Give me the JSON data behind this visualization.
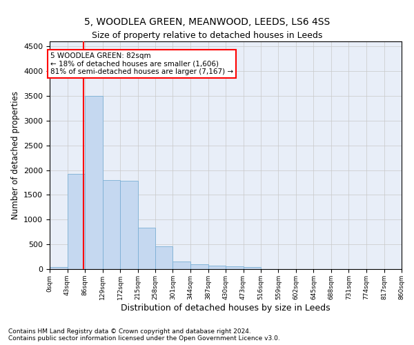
{
  "title": "5, WOODLEA GREEN, MEANWOOD, LEEDS, LS6 4SS",
  "subtitle": "Size of property relative to detached houses in Leeds",
  "xlabel": "Distribution of detached houses by size in Leeds",
  "ylabel": "Number of detached properties",
  "bar_color": "#c5d8f0",
  "bar_edge_color": "#7bafd4",
  "redline_x": 82,
  "annotation_title": "5 WOODLEA GREEN: 82sqm",
  "annotation_line1": "← 18% of detached houses are smaller (1,606)",
  "annotation_line2": "81% of semi-detached houses are larger (7,167) →",
  "bin_edges": [
    0,
    43,
    86,
    129,
    172,
    215,
    258,
    301,
    344,
    387,
    430,
    473,
    516,
    559,
    602,
    645,
    688,
    731,
    774,
    817,
    860
  ],
  "bar_heights": [
    40,
    1920,
    3500,
    1800,
    1780,
    840,
    460,
    160,
    100,
    70,
    55,
    45,
    0,
    0,
    0,
    0,
    0,
    0,
    0,
    0
  ],
  "tick_labels": [
    "0sqm",
    "43sqm",
    "86sqm",
    "129sqm",
    "172sqm",
    "215sqm",
    "258sqm",
    "301sqm",
    "344sqm",
    "387sqm",
    "430sqm",
    "473sqm",
    "516sqm",
    "559sqm",
    "602sqm",
    "645sqm",
    "688sqm",
    "731sqm",
    "774sqm",
    "817sqm",
    "860sqm"
  ],
  "ylim": [
    0,
    4600
  ],
  "yticks": [
    0,
    500,
    1000,
    1500,
    2000,
    2500,
    3000,
    3500,
    4000,
    4500
  ],
  "footer_line1": "Contains HM Land Registry data © Crown copyright and database right 2024.",
  "footer_line2": "Contains public sector information licensed under the Open Government Licence v3.0.",
  "background_color": "#e8eef8",
  "grid_color": "#c8c8c8",
  "figsize": [
    6.0,
    5.0
  ],
  "dpi": 100
}
